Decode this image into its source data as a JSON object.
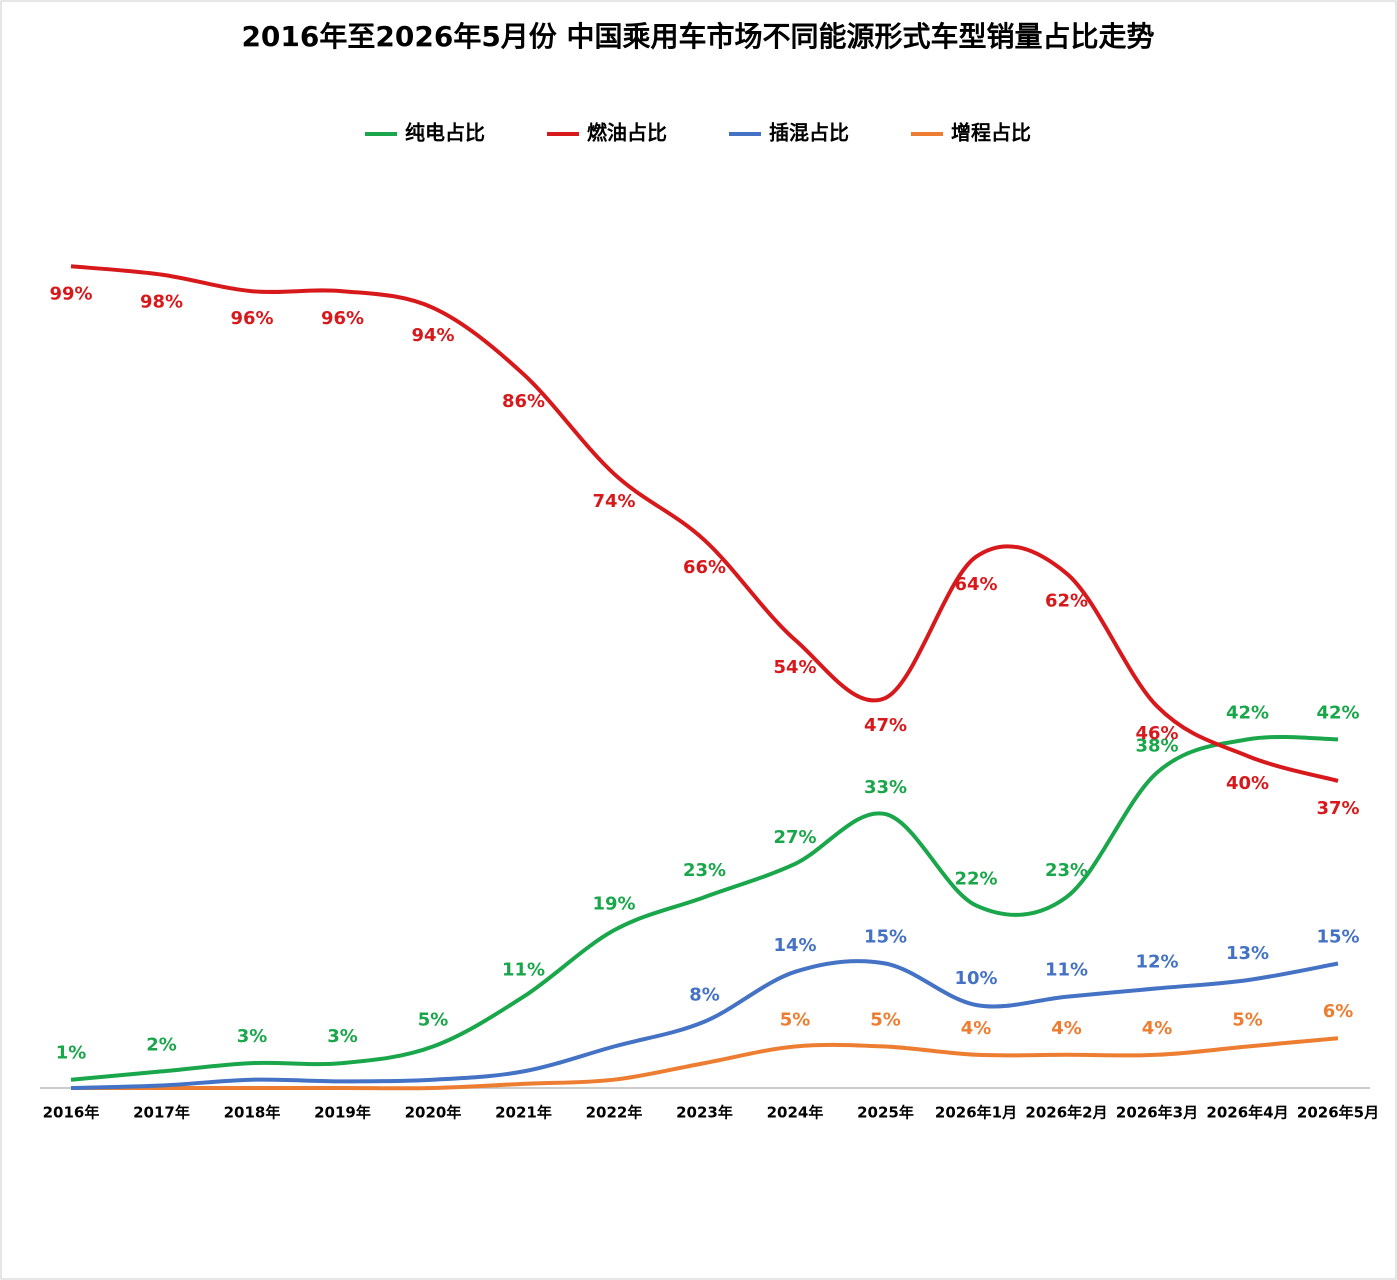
{
  "chart_data": {
    "type": "line",
    "title": "2016年至2026年5月份 中国乘用车市场不同能源形式车型销量占比走势",
    "categories": [
      "2016年",
      "2017年",
      "2018年",
      "2019年",
      "2020年",
      "2021年",
      "2022年",
      "2023年",
      "2024年",
      "2025年",
      "2026年1月",
      "2026年2月",
      "2026年3月",
      "2026年4月",
      "2026年5月"
    ],
    "ylim": [
      0,
      100
    ],
    "legend": "top",
    "series": [
      {
        "name": "纯电占比",
        "color": "#1aa64a",
        "values": [
          1,
          2,
          3,
          3,
          5,
          11,
          19,
          23,
          27,
          33,
          22,
          23,
          38,
          42,
          42
        ],
        "value_labels": [
          "1%",
          "2%",
          "3%",
          "3%",
          "5%",
          "11%",
          "19%",
          "23%",
          "27%",
          "33%",
          "22%",
          "23%",
          "38%",
          "42%",
          "42%"
        ]
      },
      {
        "name": "燃油占比",
        "color": "#d7191c",
        "values": [
          99,
          98,
          96,
          96,
          94,
          86,
          74,
          66,
          54,
          47,
          64,
          62,
          46,
          40,
          37
        ],
        "value_labels": [
          "99%",
          "98%",
          "96%",
          "96%",
          "94%",
          "86%",
          "74%",
          "66%",
          "54%",
          "47%",
          "64%",
          "62%",
          "46%",
          "40%",
          "37%"
        ]
      },
      {
        "name": "插混占比",
        "color": "#4472c4",
        "values": [
          0,
          0.3,
          1,
          0.8,
          1,
          2,
          5,
          8,
          14,
          15,
          10,
          11,
          12,
          13,
          15
        ],
        "value_labels": [
          null,
          null,
          null,
          null,
          null,
          null,
          null,
          "8%",
          "14%",
          "15%",
          "10%",
          "11%",
          "12%",
          "13%",
          "15%"
        ]
      },
      {
        "name": "增程占比",
        "color": "#ed7d31",
        "values": [
          0,
          0,
          0,
          0,
          0,
          0.5,
          1,
          3,
          5,
          5,
          4,
          4,
          4,
          5,
          6
        ],
        "value_labels": [
          null,
          null,
          null,
          null,
          null,
          null,
          null,
          null,
          "5%",
          "5%",
          "4%",
          "4%",
          "4%",
          "5%",
          "6%"
        ]
      }
    ]
  }
}
